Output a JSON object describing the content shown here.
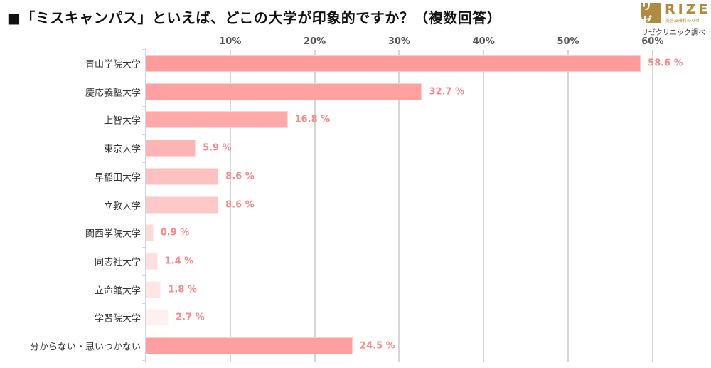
{
  "header": {
    "title": "■「ミスキャンパス」といえば、どこの大学が印象的ですか？（複数回答）"
  },
  "logo": {
    "mark": "リゼ",
    "word": "RIZE",
    "subtitle": "美容皮膚科のリゼ",
    "credit": "リゼクリニック調べ",
    "brand_color": "#b08a3e"
  },
  "chart_data": {
    "type": "bar",
    "orientation": "horizontal",
    "title": "「ミスキャンパス」といえば、どこの大学が印象的ですか？（複数回答）",
    "xlabel": "",
    "ylabel": "",
    "xlim": [
      0,
      60
    ],
    "x_ticks": [
      "10%",
      "20%",
      "30%",
      "40%",
      "50%",
      "60%"
    ],
    "x_tick_values": [
      10,
      20,
      30,
      40,
      50,
      60
    ],
    "grid": true,
    "legend": null,
    "categories": [
      "青山学院大学",
      "慶応義塾大学",
      "上智大学",
      "東京大学",
      "早稲田大学",
      "立教大学",
      "関西学院大学",
      "同志社大学",
      "立命館大学",
      "学習院大学",
      "分からない・思いつかない"
    ],
    "values": [
      58.6,
      32.7,
      16.8,
      5.9,
      8.6,
      8.6,
      0.9,
      1.4,
      1.8,
      2.7,
      24.5
    ],
    "value_labels": [
      "58.6 %",
      "32.7 %",
      "16.8 %",
      "5.9 %",
      "8.6 %",
      "8.6 %",
      "0.9 %",
      "1.4 %",
      "1.8 %",
      "2.7 %",
      "24.5 %"
    ],
    "bar_colors": [
      "#ff9b9b",
      "#ffa1a1",
      "#ffa9a9",
      "#ffb4b4",
      "#ffc0c0",
      "#ffc8c8",
      "#ffd8d8",
      "#ffe0e0",
      "#ffe6e6",
      "#fff0f0",
      "#ff9f9f"
    ],
    "label_color": "#f58a8a"
  }
}
